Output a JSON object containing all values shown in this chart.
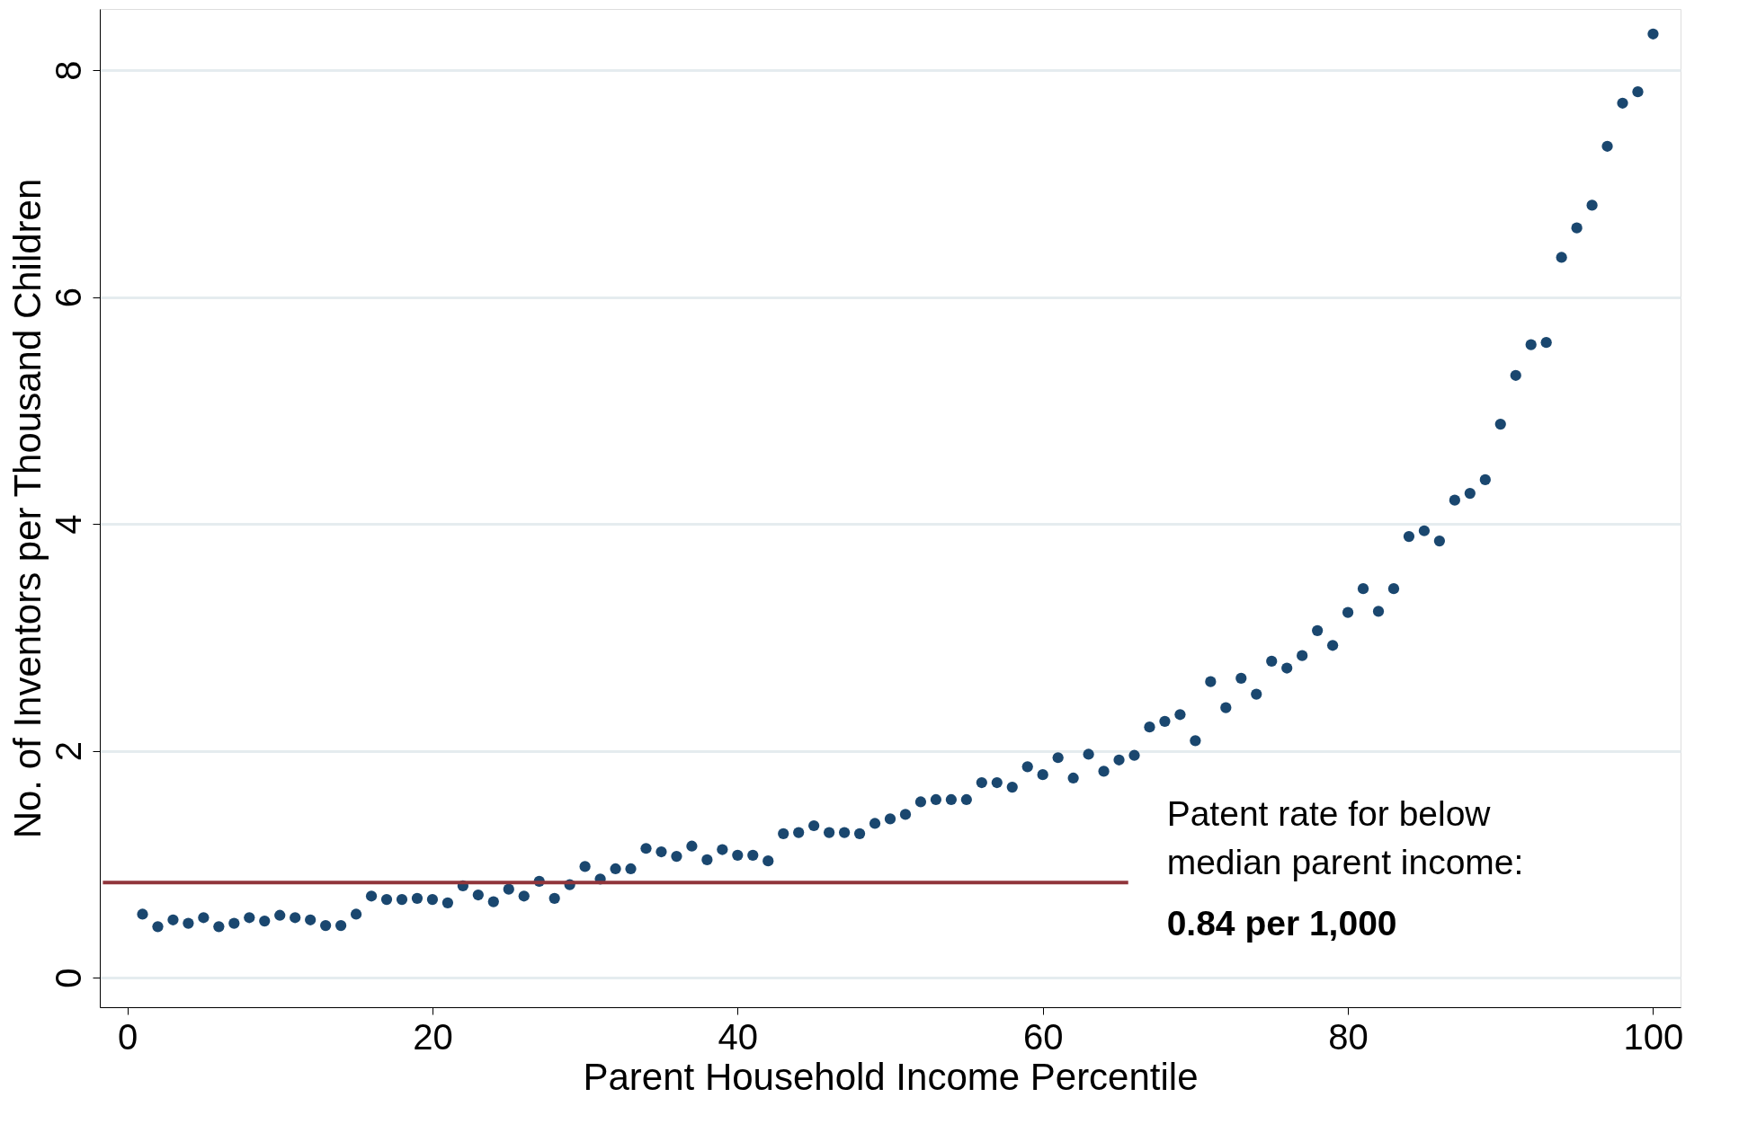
{
  "chart_data": {
    "type": "scatter",
    "xlabel": "Parent Household Income Percentile",
    "ylabel": "No. of Inventors per Thousand Children",
    "x": [
      1,
      2,
      3,
      4,
      5,
      6,
      7,
      8,
      9,
      10,
      11,
      12,
      13,
      14,
      15,
      16,
      17,
      18,
      19,
      20,
      21,
      22,
      23,
      24,
      25,
      26,
      27,
      28,
      29,
      30,
      31,
      32,
      33,
      34,
      35,
      36,
      37,
      38,
      39,
      40,
      41,
      42,
      43,
      44,
      45,
      46,
      47,
      48,
      49,
      50,
      51,
      52,
      53,
      54,
      55,
      56,
      57,
      58,
      59,
      60,
      61,
      62,
      63,
      64,
      65,
      66,
      67,
      68,
      69,
      70,
      71,
      72,
      73,
      74,
      75,
      76,
      77,
      78,
      79,
      80,
      81,
      82,
      83,
      84,
      85,
      86,
      87,
      88,
      89,
      90,
      91,
      92,
      93,
      94,
      95,
      96,
      97,
      98,
      99,
      100
    ],
    "series": [
      {
        "type": "scatter",
        "color": "#1a476f",
        "marker": "circle",
        "values": [
          0.56,
          0.45,
          0.51,
          0.48,
          0.53,
          0.45,
          0.48,
          0.53,
          0.5,
          0.55,
          0.53,
          0.51,
          0.46,
          0.46,
          0.56,
          0.72,
          0.69,
          0.69,
          0.7,
          0.69,
          0.66,
          0.81,
          0.73,
          0.67,
          0.78,
          0.72,
          0.85,
          0.7,
          0.82,
          0.98,
          0.87,
          0.96,
          0.96,
          1.14,
          1.11,
          1.07,
          1.16,
          1.04,
          1.13,
          1.08,
          1.08,
          1.03,
          1.27,
          1.28,
          1.34,
          1.28,
          1.28,
          1.27,
          1.36,
          1.4,
          1.44,
          1.55,
          1.57,
          1.57,
          1.57,
          1.72,
          1.72,
          1.68,
          1.86,
          1.79,
          1.94,
          1.76,
          1.97,
          1.82,
          1.92,
          1.96,
          2.21,
          2.26,
          2.32,
          2.09,
          2.61,
          2.38,
          2.64,
          2.5,
          2.79,
          2.73,
          2.84,
          3.06,
          2.93,
          3.22,
          3.43,
          3.23,
          3.43,
          3.89,
          3.94,
          3.85,
          4.21,
          4.27,
          4.39,
          4.88,
          5.31,
          5.58,
          5.6,
          6.35,
          6.61,
          6.81,
          7.33,
          7.71,
          7.81,
          8.32
        ]
      },
      {
        "type": "line",
        "color": "#90353b",
        "x": [
          -1.6,
          65.6
        ],
        "values": [
          0.84,
          0.84
        ]
      }
    ],
    "annotations": [
      "Patent rate for below\nmedian parent income:",
      "0.84 per 1,000"
    ],
    "xlim": [
      -1.8,
      101.8
    ],
    "ylim": [
      -0.26,
      8.54
    ],
    "xticks": [
      0,
      20,
      40,
      60,
      80,
      100
    ],
    "yticks": [
      0,
      2,
      4,
      6,
      8
    ],
    "grid": "y"
  }
}
